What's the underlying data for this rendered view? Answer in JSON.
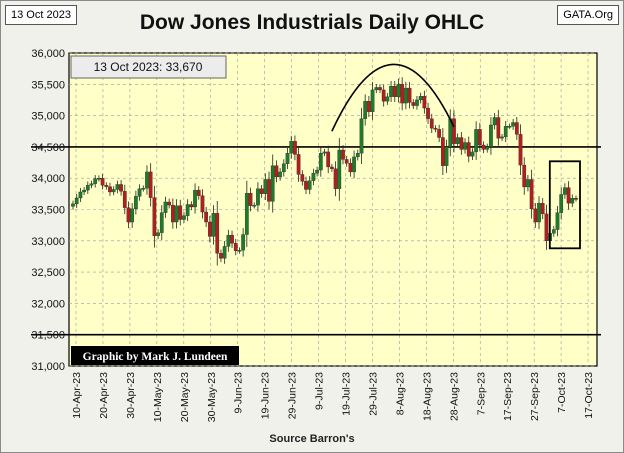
{
  "header": {
    "date_badge": "13 Oct 2023",
    "brand_badge": "GATA.Org"
  },
  "chart_data": {
    "type": "ohlc",
    "title": "Dow Jones Industrials Daily OHLC",
    "callout": "13 Oct 2023:  33,670",
    "credit": "Graphic by Mark J. Lundeen",
    "source": "Source Barron's",
    "ylim": [
      31000,
      36000
    ],
    "y_ticks": [
      "31,000",
      "31,500",
      "32,000",
      "32,500",
      "33,000",
      "33,500",
      "34,000",
      "34,500",
      "35,000",
      "35,500",
      "36,000"
    ],
    "x_tick_labels": [
      "10-Apr-23",
      "20-Apr-23",
      "30-Apr-23",
      "10-May-23",
      "20-May-23",
      "30-May-23",
      "9-Jun-23",
      "19-Jun-23",
      "29-Jun-23",
      "9-Jul-23",
      "19-Jul-23",
      "29-Jul-23",
      "8-Aug-23",
      "18-Aug-23",
      "28-Aug-23",
      "7-Sep-23",
      "17-Sep-23",
      "27-Sep-23",
      "7-Oct-23",
      "17-Oct-23"
    ],
    "reference_lines": [
      34500,
      31500
    ],
    "grid": "dashed, vertical and horizontal",
    "colors": {
      "up": "#1f7a2a",
      "down": "#b01e1e",
      "plot_bg": "#ffffc8",
      "reference": "#000000"
    },
    "closes": [
      33590,
      33684,
      33780,
      33810,
      33887,
      33912,
      33990,
      34000,
      33888,
      33865,
      33780,
      33820,
      33900,
      33790,
      33530,
      33300,
      33510,
      33710,
      33830,
      33840,
      34100,
      33690,
      33080,
      33130,
      33450,
      33620,
      33570,
      33300,
      33560,
      33340,
      33400,
      33580,
      33540,
      33810,
      33720,
      33460,
      33300,
      33070,
      33440,
      32800,
      32720,
      32910,
      33090,
      32960,
      32840,
      32850,
      33100,
      33760,
      33560,
      33570,
      33830,
      33750,
      33980,
      33630,
      34200,
      34020,
      34100,
      34230,
      34400,
      34590,
      34380,
      34060,
      33950,
      33820,
      33960,
      34080,
      34130,
      34400,
      34420,
      34180,
      34150,
      33830,
      34450,
      34300,
      34240,
      34100,
      34340,
      34400,
      34950,
      35230,
      35060,
      35410,
      35450,
      35410,
      35230,
      35300,
      35470,
      35300,
      35500,
      35200,
      35440,
      35210,
      35160,
      35250,
      35310,
      35120,
      34950,
      34800,
      34780,
      34650,
      34200,
      34500,
      34950,
      34550,
      34650,
      34460,
      34570,
      34350,
      34420,
      34780,
      34530,
      34460,
      34500,
      34850,
      34970,
      34640,
      34660,
      34830,
      34830,
      34890,
      34700,
      34210,
      33860,
      33980,
      33510,
      33300,
      33600,
      33430,
      33000,
      33120,
      33180,
      33450,
      33740,
      33850,
      33600,
      33680,
      33670
    ]
  }
}
